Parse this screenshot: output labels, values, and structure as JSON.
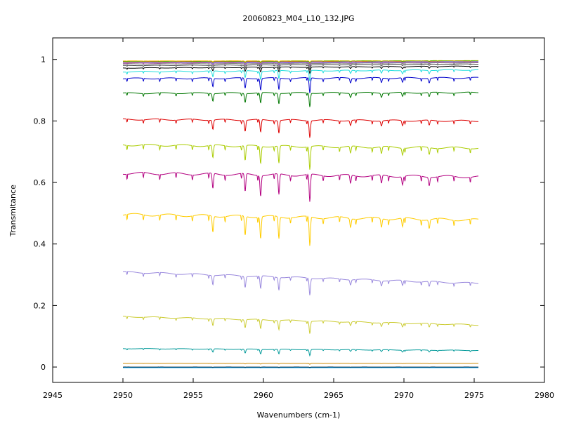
{
  "chart_data": {
    "type": "line",
    "title": "20060823_M04_L10_132.JPG",
    "xlabel": "Wavenumbers (cm-1)",
    "ylabel": "Transmitance",
    "xlim": [
      2945,
      2980
    ],
    "ylim": [
      -0.05,
      1.07
    ],
    "xticks": [
      "2945",
      "2950",
      "2955",
      "2960",
      "2965",
      "2970",
      "2975",
      "2980"
    ],
    "yticks": [
      "0",
      "0.2",
      "0.4",
      "0.6",
      "0.8",
      "1"
    ],
    "grid": false,
    "x_start": 2950,
    "x_end": 2975.3,
    "absorption_lines": [
      {
        "x": 2956.4,
        "strength": 0.55
      },
      {
        "x": 2958.7,
        "strength": 0.65
      },
      {
        "x": 2959.8,
        "strength": 0.75
      },
      {
        "x": 2961.1,
        "strength": 0.75
      },
      {
        "x": 2963.3,
        "strength": 1.0
      },
      {
        "x": 2966.2,
        "strength": 0.3
      },
      {
        "x": 2968.4,
        "strength": 0.3
      },
      {
        "x": 2969.9,
        "strength": 0.3
      },
      {
        "x": 2971.8,
        "strength": 0.3
      }
    ],
    "series": [
      {
        "color": "#ffb400",
        "start": 0.995,
        "end": 0.996,
        "depth": 0.005
      },
      {
        "color": "#00cc00",
        "start": 0.993,
        "end": 0.995,
        "depth": 0.006
      },
      {
        "color": "#ff6600",
        "start": 0.992,
        "end": 0.994,
        "depth": 0.008
      },
      {
        "color": "#6699ff",
        "start": 0.99,
        "end": 0.993,
        "depth": 0.009
      },
      {
        "color": "#aa44aa",
        "start": 0.988,
        "end": 0.991,
        "depth": 0.01
      },
      {
        "color": "#888888",
        "start": 0.985,
        "end": 0.989,
        "depth": 0.012
      },
      {
        "color": "#444444",
        "start": 0.98,
        "end": 0.985,
        "depth": 0.015
      },
      {
        "color": "#000000",
        "start": 0.972,
        "end": 0.978,
        "depth": 0.02
      },
      {
        "color": "#22dddd",
        "start": 0.96,
        "end": 0.966,
        "depth": 0.035
      },
      {
        "color": "#0000cc",
        "start": 0.938,
        "end": 0.94,
        "depth": 0.05
      },
      {
        "color": "#007700",
        "start": 0.89,
        "end": 0.892,
        "depth": 0.045
      },
      {
        "color": "#dd0000",
        "start": 0.805,
        "end": 0.8,
        "depth": 0.055
      },
      {
        "color": "#aacc00",
        "start": 0.722,
        "end": 0.712,
        "depth": 0.075
      },
      {
        "color": "#b30080",
        "start": 0.63,
        "end": 0.618,
        "depth": 0.09
      },
      {
        "color": "#ffcc00",
        "start": 0.496,
        "end": 0.478,
        "depth": 0.095
      },
      {
        "color": "#9988dd",
        "start": 0.309,
        "end": 0.272,
        "depth": 0.055
      },
      {
        "color": "#cccc33",
        "start": 0.164,
        "end": 0.137,
        "depth": 0.04
      },
      {
        "color": "#009999",
        "start": 0.06,
        "end": 0.054,
        "depth": 0.02
      },
      {
        "color": "#cc8800",
        "start": 0.012,
        "end": 0.012,
        "depth": 0.003
      },
      {
        "color": "#00aaff",
        "start": -0.002,
        "end": -0.002,
        "depth": 0.001
      },
      {
        "color": "#002233",
        "start": 0.0,
        "end": 0.0,
        "depth": 0.001
      }
    ]
  }
}
